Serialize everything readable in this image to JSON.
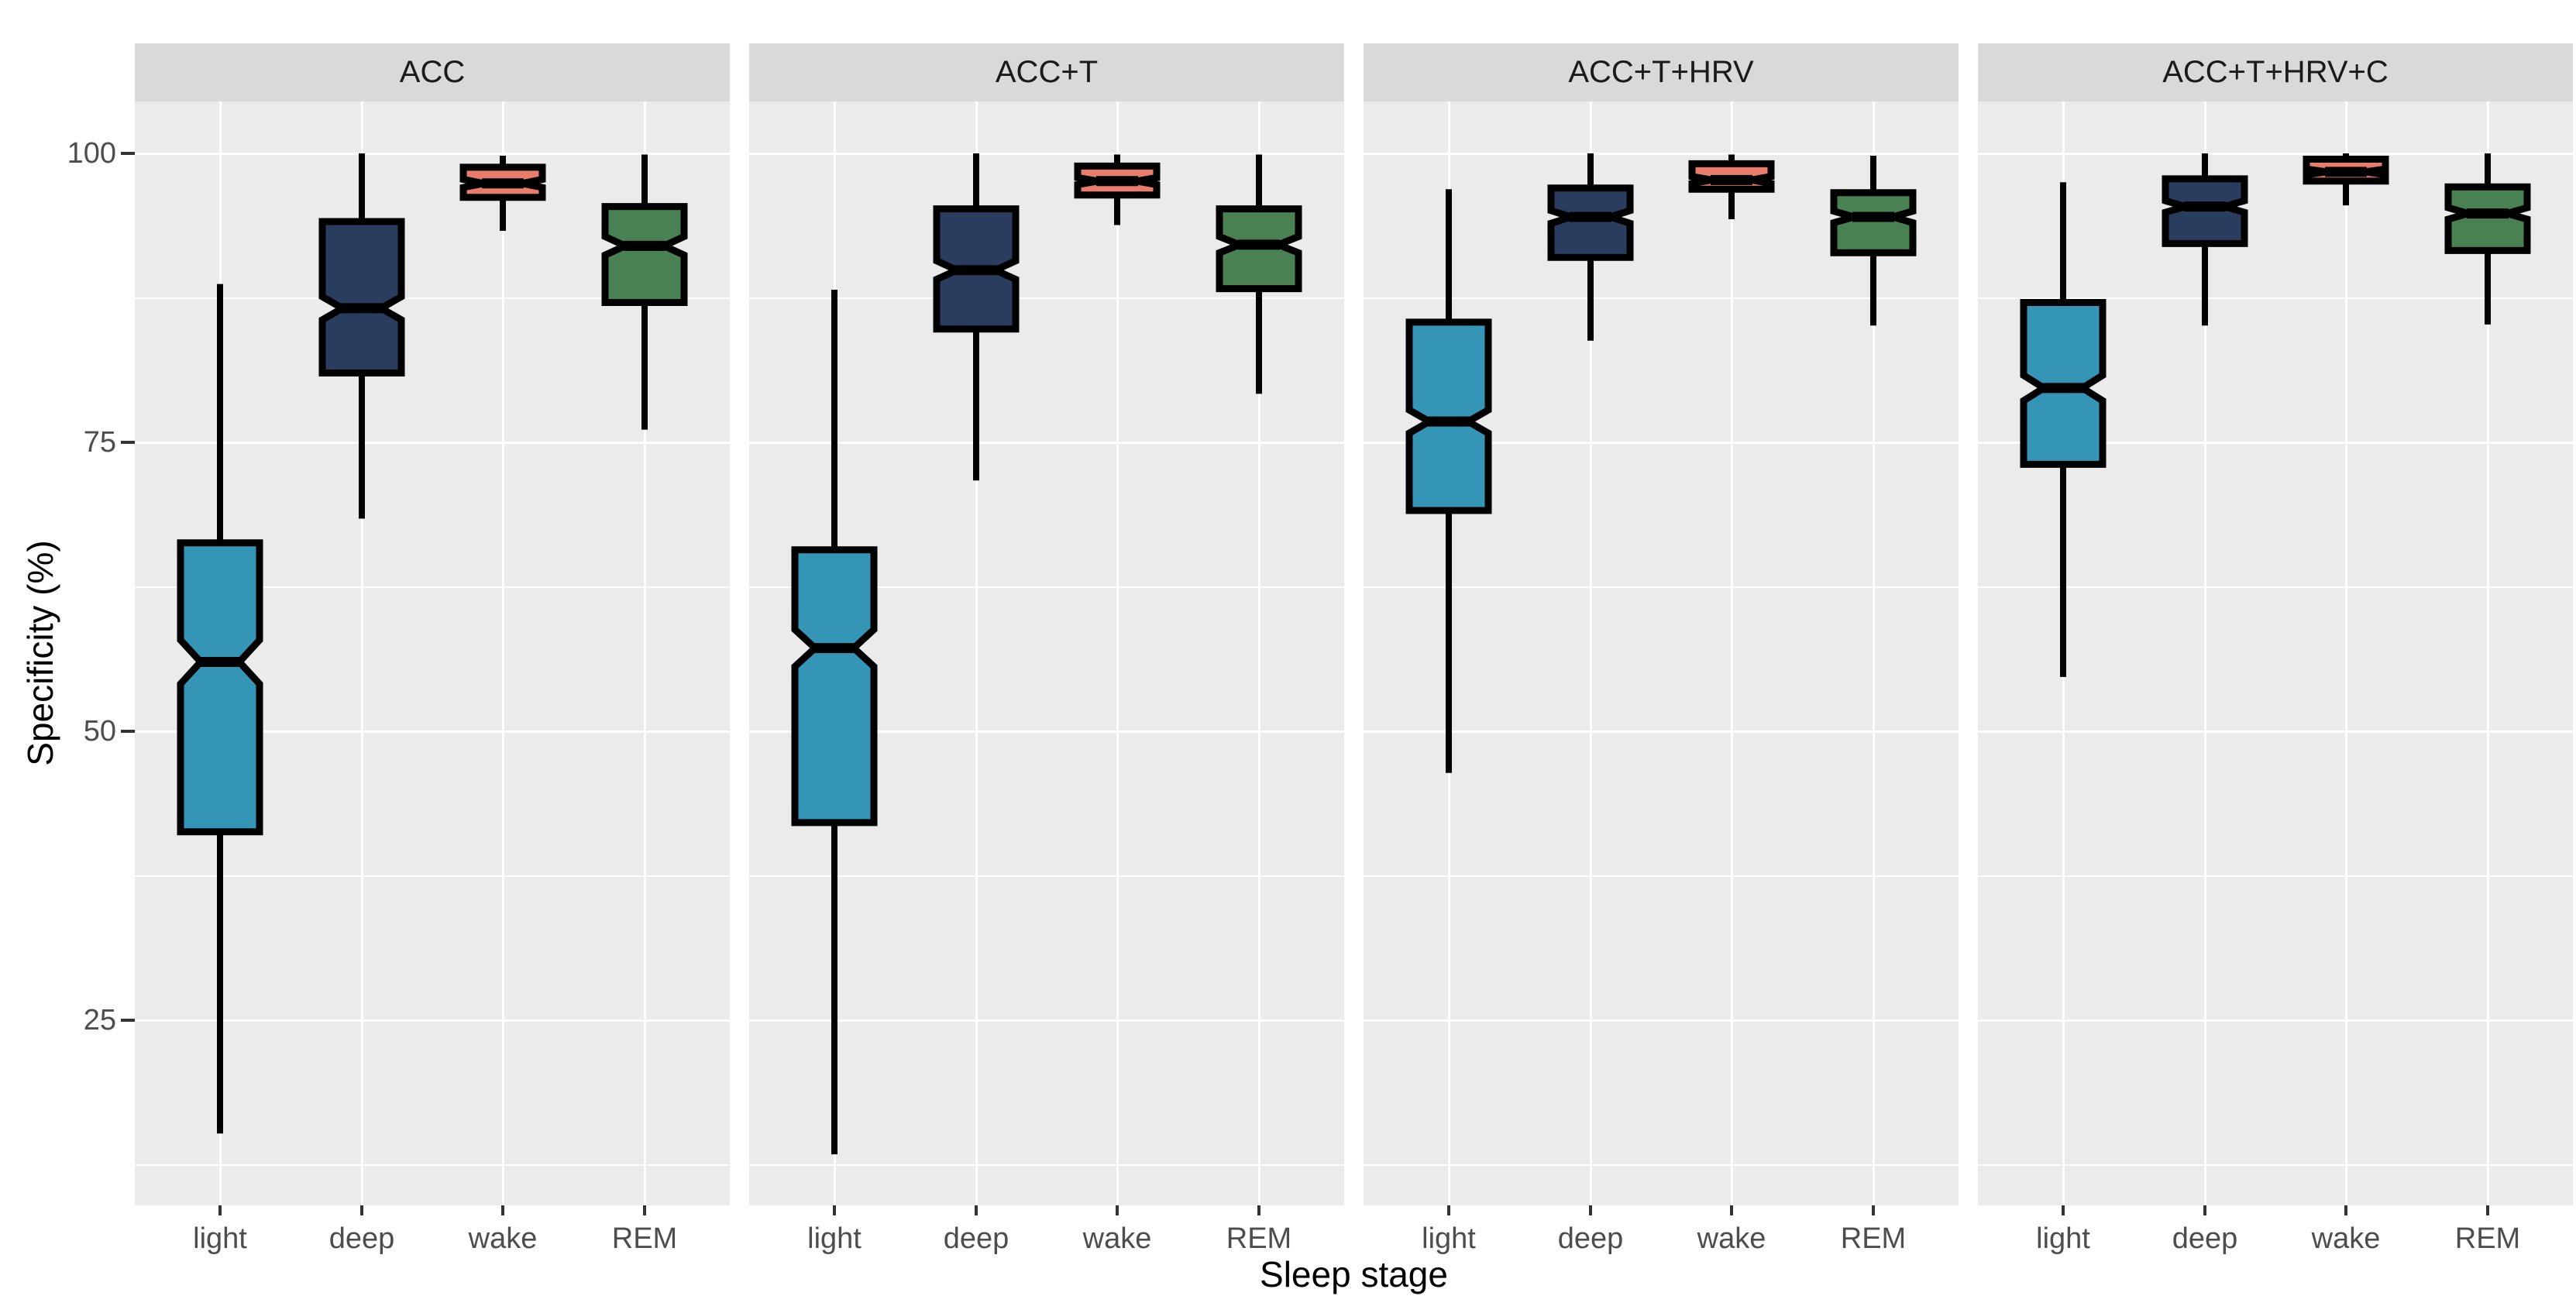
{
  "chart_data": {
    "type": "boxplot",
    "notched": true,
    "xlabel": "Sleep stage",
    "ylabel": "Specificity (%)",
    "y_ticks": [
      100,
      75,
      50,
      25
    ],
    "y_minor_gridlines": [
      87.5,
      62.5,
      37.5,
      12.5
    ],
    "ylim": [
      8.95,
      104.55
    ],
    "grid": "on",
    "legend_position": "none",
    "categories": [
      "light",
      "deep",
      "wake",
      "REM"
    ],
    "colors": {
      "light": "#3595B6",
      "deep": "#2B3D5F",
      "wake": "#E97D6B",
      "REM": "#4A8153",
      "box_border": "#000000",
      "panel_background": "#EBEBEB",
      "strip_background": "#D9D9D9",
      "gridline": "#FFFFFF",
      "tick_label": "#4D4D4D",
      "axis_title": "#000000"
    },
    "facets": [
      {
        "label": "ACC",
        "boxes": [
          {
            "stage": "light",
            "lo": 15.2,
            "q1": 41.3,
            "med": 56.0,
            "q3": 66.3,
            "hi": 88.7,
            "notch": 1.9
          },
          {
            "stage": "deep",
            "lo": 68.4,
            "q1": 81.0,
            "med": 86.6,
            "q3": 94.1,
            "hi": 100,
            "notch": 1.0
          },
          {
            "stage": "wake",
            "lo": 93.3,
            "q1": 96.2,
            "med": 97.4,
            "q3": 98.8,
            "hi": 99.8,
            "notch": 0.35
          },
          {
            "stage": "REM",
            "lo": 76.1,
            "q1": 87.1,
            "med": 92.0,
            "q3": 95.4,
            "hi": 99.9,
            "notch": 0.8
          }
        ]
      },
      {
        "label": "ACC+T",
        "boxes": [
          {
            "stage": "light",
            "lo": 13.4,
            "q1": 42.1,
            "med": 57.2,
            "q3": 65.7,
            "hi": 88.2,
            "notch": 1.6
          },
          {
            "stage": "deep",
            "lo": 71.7,
            "q1": 84.8,
            "med": 89.9,
            "q3": 95.2,
            "hi": 100,
            "notch": 0.8
          },
          {
            "stage": "wake",
            "lo": 93.8,
            "q1": 96.4,
            "med": 97.6,
            "q3": 98.9,
            "hi": 99.9,
            "notch": 0.3
          },
          {
            "stage": "REM",
            "lo": 79.2,
            "q1": 88.3,
            "med": 92.1,
            "q3": 95.2,
            "hi": 99.9,
            "notch": 0.7
          }
        ]
      },
      {
        "label": "ACC+T+HRV",
        "boxes": [
          {
            "stage": "light",
            "lo": 46.4,
            "q1": 69.1,
            "med": 76.8,
            "q3": 85.4,
            "hi": 96.9,
            "notch": 1.0
          },
          {
            "stage": "deep",
            "lo": 83.8,
            "q1": 91.0,
            "med": 94.5,
            "q3": 97.0,
            "hi": 100,
            "notch": 0.55
          },
          {
            "stage": "wake",
            "lo": 94.3,
            "q1": 96.9,
            "med": 97.7,
            "q3": 99.1,
            "hi": 99.9,
            "notch": 0.3
          },
          {
            "stage": "REM",
            "lo": 85.1,
            "q1": 91.4,
            "med": 94.5,
            "q3": 96.6,
            "hi": 99.8,
            "notch": 0.5
          }
        ]
      },
      {
        "label": "ACC+T+HRV+C",
        "boxes": [
          {
            "stage": "light",
            "lo": 54.7,
            "q1": 73.1,
            "med": 79.7,
            "q3": 87.1,
            "hi": 97.5,
            "notch": 1.1
          },
          {
            "stage": "deep",
            "lo": 85.1,
            "q1": 92.2,
            "med": 95.4,
            "q3": 97.8,
            "hi": 100,
            "notch": 0.5
          },
          {
            "stage": "wake",
            "lo": 95.5,
            "q1": 97.6,
            "med": 98.4,
            "q3": 99.5,
            "hi": 100,
            "notch": 0.25
          },
          {
            "stage": "REM",
            "lo": 85.2,
            "q1": 91.6,
            "med": 94.8,
            "q3": 97.1,
            "hi": 100,
            "notch": 0.5
          }
        ]
      }
    ]
  }
}
